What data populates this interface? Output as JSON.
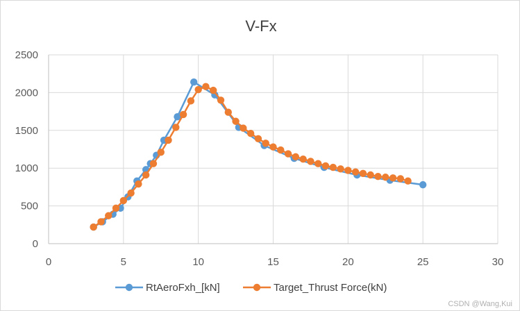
{
  "chart_data": {
    "type": "scatter",
    "title": "V-Fx",
    "xlabel": "",
    "ylabel": "",
    "xlim": [
      0,
      30
    ],
    "ylim": [
      0,
      2500
    ],
    "xticks": [
      0,
      5,
      10,
      15,
      20,
      25,
      30
    ],
    "yticks": [
      0,
      500,
      1000,
      1500,
      2000,
      2500
    ],
    "grid": "major",
    "legend_position": "bottom",
    "series": [
      {
        "name": "RtAeroFxh_[kN]",
        "color": "#5b9bd5",
        "points": [
          [
            3,
            220
          ],
          [
            3.6,
            290
          ],
          [
            4.3,
            390
          ],
          [
            4.8,
            470
          ],
          [
            5.3,
            620
          ],
          [
            5.9,
            830
          ],
          [
            6.5,
            980
          ],
          [
            6.8,
            1060
          ],
          [
            7.2,
            1170
          ],
          [
            7.7,
            1370
          ],
          [
            8.6,
            1680
          ],
          [
            9.7,
            2140
          ],
          [
            11.1,
            1970
          ],
          [
            12.7,
            1540
          ],
          [
            14.4,
            1300
          ],
          [
            16.4,
            1130
          ],
          [
            18.4,
            1010
          ],
          [
            20.6,
            910
          ],
          [
            22.8,
            840
          ],
          [
            25,
            780
          ]
        ]
      },
      {
        "name": "Target_Thrust Force(kN)",
        "color": "#ed7d31",
        "points": [
          [
            3,
            220
          ],
          [
            3.5,
            290
          ],
          [
            4,
            370
          ],
          [
            4.5,
            470
          ],
          [
            5,
            570
          ],
          [
            5.5,
            670
          ],
          [
            6,
            790
          ],
          [
            6.5,
            910
          ],
          [
            7,
            1060
          ],
          [
            7.5,
            1210
          ],
          [
            8,
            1370
          ],
          [
            8.5,
            1540
          ],
          [
            9,
            1710
          ],
          [
            9.5,
            1890
          ],
          [
            10,
            2040
          ],
          [
            10.5,
            2080
          ],
          [
            11,
            2030
          ],
          [
            11.5,
            1900
          ],
          [
            12,
            1740
          ],
          [
            12.5,
            1620
          ],
          [
            13,
            1530
          ],
          [
            13.5,
            1460
          ],
          [
            14,
            1390
          ],
          [
            14.5,
            1330
          ],
          [
            15,
            1280
          ],
          [
            15.5,
            1240
          ],
          [
            16,
            1190
          ],
          [
            16.5,
            1150
          ],
          [
            17,
            1120
          ],
          [
            17.5,
            1090
          ],
          [
            18,
            1060
          ],
          [
            18.5,
            1030
          ],
          [
            19,
            1010
          ],
          [
            19.5,
            990
          ],
          [
            20,
            970
          ],
          [
            20.5,
            950
          ],
          [
            21,
            930
          ],
          [
            21.5,
            910
          ],
          [
            22,
            890
          ],
          [
            22.5,
            880
          ],
          [
            23,
            870
          ],
          [
            23.5,
            860
          ],
          [
            24,
            830
          ]
        ]
      }
    ]
  },
  "watermark": "CSDN @Wang,Kui"
}
